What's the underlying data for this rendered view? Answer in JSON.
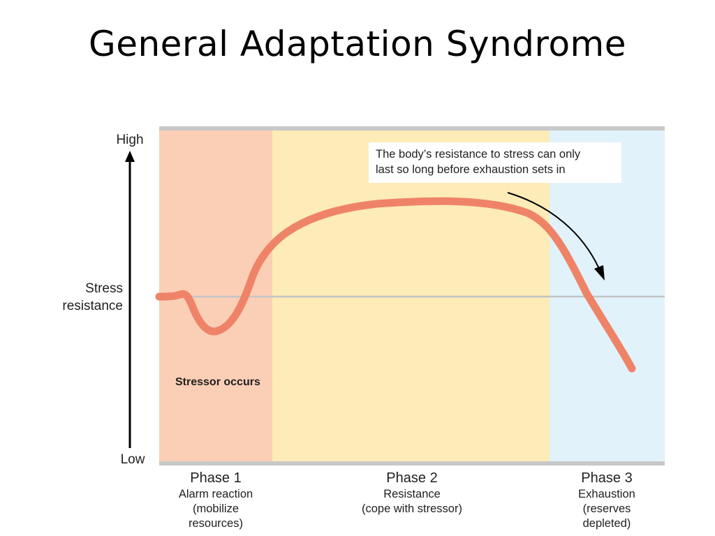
{
  "title": "General Adaptation Syndrome",
  "axis": {
    "high": "High",
    "low": "Low",
    "ylabel": [
      "Stress",
      "resistance"
    ]
  },
  "phases": [
    {
      "title": "Phase 1",
      "desc": [
        "Alarm reaction",
        "(mobilize",
        "resources)"
      ],
      "color": "#fbcfb6"
    },
    {
      "title": "Phase 2",
      "desc": [
        "Resistance",
        "(cope with stressor)"
      ],
      "color": "#fdebb8"
    },
    {
      "title": "Phase 3",
      "desc": [
        "Exhaustion",
        "(reserves",
        "depleted)"
      ],
      "color": "#e1f2fb"
    }
  ],
  "stressor_label": "Stressor occurs",
  "annotation": [
    "The body’s resistance to stress can only",
    "last so long before exhaustion sets in"
  ],
  "colors": {
    "curve": "#ef8367",
    "baseline": "#c4c4c4",
    "frame": "#c8c8c8"
  }
}
